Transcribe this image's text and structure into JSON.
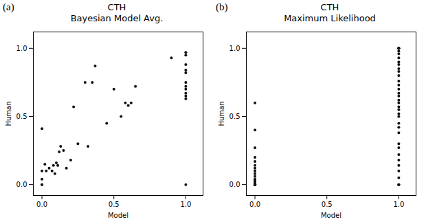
{
  "chart_data": [
    {
      "type": "scatter",
      "title": "CTH\nBayesian Model Avg.",
      "annotations": [
        "(a)"
      ],
      "x_label": "Model",
      "y_label": "Human",
      "x": [
        0.0,
        0.0,
        0.0,
        0.0,
        0.0,
        0.02,
        0.03,
        0.05,
        0.07,
        0.08,
        0.09,
        0.1,
        0.11,
        0.12,
        0.13,
        0.15,
        0.17,
        0.2,
        0.22,
        0.25,
        0.3,
        0.32,
        0.35,
        0.37,
        0.45,
        0.5,
        0.55,
        0.58,
        0.6,
        0.62,
        0.65,
        0.9,
        1.0,
        1.0,
        1.0,
        1.0,
        1.0,
        1.0,
        1.0,
        1.0,
        1.0,
        1.0,
        1.0,
        1.0
      ],
      "values": [
        0.0,
        0.0,
        0.04,
        0.1,
        0.41,
        0.15,
        0.1,
        0.12,
        0.1,
        0.14,
        0.08,
        0.16,
        0.14,
        0.24,
        0.28,
        0.25,
        0.12,
        0.18,
        0.57,
        0.3,
        0.75,
        0.28,
        0.75,
        0.87,
        0.45,
        0.7,
        0.5,
        0.6,
        0.58,
        0.6,
        0.72,
        0.93,
        0.0,
        0.63,
        0.65,
        0.67,
        0.7,
        0.72,
        0.75,
        0.82,
        0.84,
        0.88,
        0.95,
        0.97
      ],
      "color": "#111111",
      "xlim": [
        -0.06,
        1.12
      ],
      "ylim": [
        -0.08,
        1.12
      ],
      "xticks": [
        {
          "value": 0.0,
          "label": "0.0"
        },
        0.5,
        {
          "value": 1.0,
          "label": "1.0"
        }
      ],
      "yticks": [
        {
          "value": 0.0,
          "label": "0.0"
        },
        0.5,
        {
          "value": 1.0,
          "label": "1.0"
        }
      ],
      "grid": false
    },
    {
      "type": "scatter",
      "title": "CTH\nMaximum Likelihood",
      "annotations": [
        "(b)"
      ],
      "x_label": "Model",
      "y_label": "Human",
      "x": [
        0.0,
        0.0,
        0.0,
        0.0,
        0.0,
        0.0,
        0.0,
        0.0,
        0.0,
        0.0,
        0.0,
        0.0,
        0.0,
        0.0,
        0.0,
        0.0,
        0.0,
        0.0,
        0.0,
        0.0,
        0.0,
        0.0,
        0.0,
        0.0,
        0.0,
        0.0,
        0.0,
        0.0,
        0.0,
        0.0,
        1.0,
        1.0,
        1.0,
        1.0,
        1.0,
        1.0,
        1.0,
        1.0,
        1.0,
        1.0,
        1.0,
        1.0,
        1.0,
        1.0,
        1.0,
        1.0,
        1.0,
        1.0,
        1.0,
        1.0,
        1.0,
        1.0,
        1.0,
        1.0,
        1.0,
        1.0,
        1.0,
        1.0,
        1.0,
        1.0,
        1.0,
        1.0,
        1.0,
        1.0,
        1.0,
        1.0
      ],
      "values": [
        0.0,
        0.0,
        0.0,
        0.0,
        0.0,
        0.0,
        0.0,
        0.0,
        0.0,
        0.0,
        0.0,
        0.0,
        0.0,
        0.0,
        0.0,
        0.0,
        0.01,
        0.02,
        0.03,
        0.04,
        0.06,
        0.08,
        0.1,
        0.12,
        0.14,
        0.17,
        0.2,
        0.27,
        0.4,
        0.6,
        0.0,
        0.0,
        0.0,
        0.05,
        0.1,
        0.14,
        0.18,
        0.22,
        0.27,
        0.3,
        0.38,
        0.42,
        0.45,
        0.5,
        0.52,
        0.55,
        0.57,
        0.6,
        0.62,
        0.65,
        0.67,
        0.7,
        0.73,
        0.76,
        0.8,
        0.83,
        0.85,
        0.88,
        0.9,
        0.93,
        0.96,
        0.98,
        1.0,
        1.0,
        1.0,
        1.0
      ],
      "color": "#111111",
      "xlim": [
        -0.06,
        1.12
      ],
      "ylim": [
        -0.08,
        1.12
      ],
      "xticks": [
        {
          "value": 0.0,
          "label": "0.0"
        },
        0.5,
        {
          "value": 1.0,
          "label": "1.0"
        }
      ],
      "yticks": [
        {
          "value": 0.0,
          "label": "0.0"
        },
        0.5,
        {
          "value": 1.0,
          "label": "1.0"
        }
      ],
      "grid": false
    }
  ]
}
